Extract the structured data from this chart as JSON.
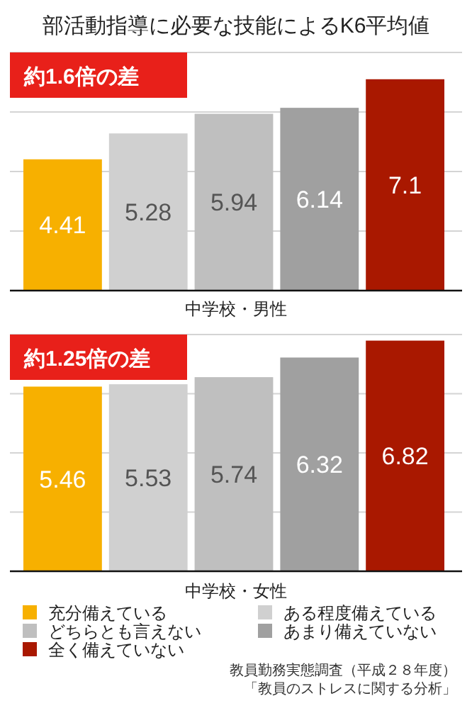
{
  "chart_data": [
    {
      "type": "bar",
      "title": "部活動指導に必要な技能によるK6平均値",
      "xlabel": "中学校・男性",
      "annotations": [
        "約1.6倍の差"
      ],
      "categories": [
        null
      ],
      "series": [
        {
          "color": "#f7b000",
          "values": [
            4.41
          ]
        },
        {
          "color": "#d0d0d0",
          "values": [
            5.28
          ]
        },
        {
          "color": "#bfbfbf",
          "values": [
            5.94
          ]
        },
        {
          "color": "#a0a0a0",
          "values": [
            6.14
          ]
        },
        {
          "color": "#a91800",
          "values": [
            7.1
          ]
        }
      ],
      "ylim": [
        0,
        8
      ],
      "yticks": [
        {
          "value": 2,
          "label": null
        },
        {
          "value": 4,
          "label": null
        },
        {
          "value": 6,
          "label": null
        },
        {
          "value": 8,
          "label": null
        }
      ],
      "grid": "y",
      "data_labels": true,
      "legend": false
    },
    {
      "type": "bar",
      "xlabel": "中学校・女性",
      "annotations": [
        "約1.25倍の差",
        "教員勤務実態調査（平成２８年度）",
        "「教員のストレスに関する分析」"
      ],
      "categories": [
        null
      ],
      "series": [
        {
          "name": "充分備えている",
          "color": "#f7b000",
          "values": [
            5.46
          ]
        },
        {
          "name": "ある程度備えている",
          "color": "#d0d0d0",
          "values": [
            5.53
          ]
        },
        {
          "name": "どちらとも言えない",
          "color": "#bfbfbf",
          "values": [
            5.74
          ]
        },
        {
          "name": "あまり備えていない",
          "color": "#a0a0a0",
          "values": [
            6.32
          ]
        },
        {
          "name": "全く備えていない",
          "color": "#a91800",
          "values": [
            6.82
          ]
        }
      ],
      "ylim": [
        0,
        7
      ],
      "yticks": [
        {
          "value": 1.75,
          "label": null
        },
        {
          "value": 3.5,
          "label": null
        },
        {
          "value": 5.25,
          "label": null
        },
        {
          "value": 7,
          "label": null
        }
      ],
      "grid": "y",
      "data_labels": true,
      "legend": "bottom"
    }
  ]
}
